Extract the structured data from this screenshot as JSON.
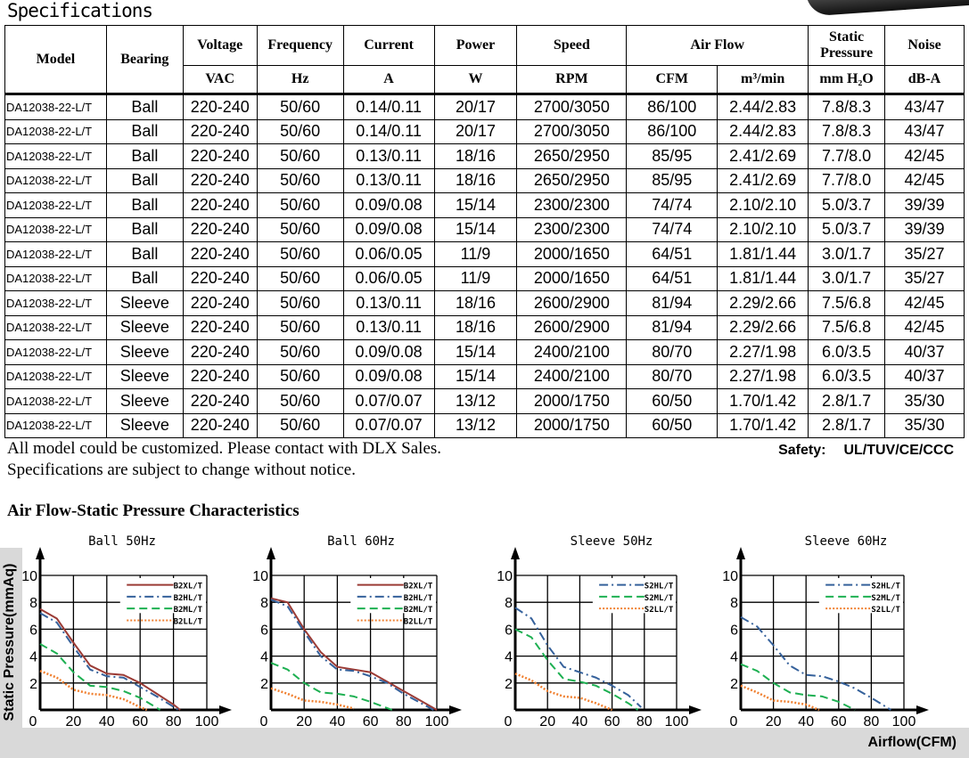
{
  "title": "Specifications",
  "table": {
    "headers": {
      "model": "Model",
      "bearing": "Bearing",
      "voltage": "Voltage",
      "frequency": "Frequency",
      "current": "Current",
      "power": "Power",
      "speed": "Speed",
      "airflow": "Air Flow",
      "static_pressure": "Static Pressure",
      "noise": "Noise"
    },
    "units": {
      "voltage": "VAC",
      "frequency": "Hz",
      "current": "A",
      "power": "W",
      "speed": "RPM",
      "cfm": "CFM",
      "m3": "m³/min",
      "pressure": "mm H₂O",
      "noise": "dB-A"
    },
    "rows": [
      [
        "DA12038-22-L/T",
        "Ball",
        "220-240",
        "50/60",
        "0.14/0.11",
        "20/17",
        "2700/3050",
        "86/100",
        "2.44/2.83",
        "7.8/8.3",
        "43/47"
      ],
      [
        "DA12038-22-L/T",
        "Ball",
        "220-240",
        "50/60",
        "0.14/0.11",
        "20/17",
        "2700/3050",
        "86/100",
        "2.44/2.83",
        "7.8/8.3",
        "43/47"
      ],
      [
        "DA12038-22-L/T",
        "Ball",
        "220-240",
        "50/60",
        "0.13/0.11",
        "18/16",
        "2650/2950",
        "85/95",
        "2.41/2.69",
        "7.7/8.0",
        "42/45"
      ],
      [
        "DA12038-22-L/T",
        "Ball",
        "220-240",
        "50/60",
        "0.13/0.11",
        "18/16",
        "2650/2950",
        "85/95",
        "2.41/2.69",
        "7.7/8.0",
        "42/45"
      ],
      [
        "DA12038-22-L/T",
        "Ball",
        "220-240",
        "50/60",
        "0.09/0.08",
        "15/14",
        "2300/2300",
        "74/74",
        "2.10/2.10",
        "5.0/3.7",
        "39/39"
      ],
      [
        "DA12038-22-L/T",
        "Ball",
        "220-240",
        "50/60",
        "0.09/0.08",
        "15/14",
        "2300/2300",
        "74/74",
        "2.10/2.10",
        "5.0/3.7",
        "39/39"
      ],
      [
        "DA12038-22-L/T",
        "Ball",
        "220-240",
        "50/60",
        "0.06/0.05",
        "11/9",
        "2000/1650",
        "64/51",
        "1.81/1.44",
        "3.0/1.7",
        "35/27"
      ],
      [
        "DA12038-22-L/T",
        "Ball",
        "220-240",
        "50/60",
        "0.06/0.05",
        "11/9",
        "2000/1650",
        "64/51",
        "1.81/1.44",
        "3.0/1.7",
        "35/27"
      ],
      [
        "DA12038-22-L/T",
        "Sleeve",
        "220-240",
        "50/60",
        "0.13/0.11",
        "18/16",
        "2600/2900",
        "81/94",
        "2.29/2.66",
        "7.5/6.8",
        "42/45"
      ],
      [
        "DA12038-22-L/T",
        "Sleeve",
        "220-240",
        "50/60",
        "0.13/0.11",
        "18/16",
        "2600/2900",
        "81/94",
        "2.29/2.66",
        "7.5/6.8",
        "42/45"
      ],
      [
        "DA12038-22-L/T",
        "Sleeve",
        "220-240",
        "50/60",
        "0.09/0.08",
        "15/14",
        "2400/2100",
        "80/70",
        "2.27/1.98",
        "6.0/3.5",
        "40/37"
      ],
      [
        "DA12038-22-L/T",
        "Sleeve",
        "220-240",
        "50/60",
        "0.09/0.08",
        "15/14",
        "2400/2100",
        "80/70",
        "2.27/1.98",
        "6.0/3.5",
        "40/37"
      ],
      [
        "DA12038-22-L/T",
        "Sleeve",
        "220-240",
        "50/60",
        "0.07/0.07",
        "13/12",
        "2000/1750",
        "60/50",
        "1.70/1.42",
        "2.8/1.7",
        "35/30"
      ],
      [
        "DA12038-22-L/T",
        "Sleeve",
        "220-240",
        "50/60",
        "0.07/0.07",
        "13/12",
        "2000/1750",
        "60/50",
        "1.70/1.42",
        "2.8/1.7",
        "35/30"
      ]
    ]
  },
  "notes": [
    "All model could be customized. Please contact with DLX Sales.",
    "Specifications are subject to change without notice."
  ],
  "safety": {
    "label": "Safety:",
    "value": "UL/TUV/CE/CCC"
  },
  "section_title": "Air Flow-Static Pressure Characteristics",
  "ylabel": "Static Pressure(mmAq)",
  "xlabel": "Airflow(CFM)",
  "chart_data": [
    {
      "type": "line",
      "title": "Ball 50Hz",
      "xlim": [
        0,
        100
      ],
      "ylim": [
        0,
        10
      ],
      "xticks": [
        0,
        20,
        40,
        60,
        80,
        100
      ],
      "yticks": [
        0,
        2,
        4,
        6,
        8,
        10
      ],
      "grid": true,
      "legend": "top-right",
      "series": [
        {
          "name": "B2XL/T",
          "color": "#9b3b35",
          "style": "solid",
          "x": [
            0,
            10,
            20,
            30,
            40,
            50,
            60,
            70,
            80,
            84
          ],
          "y": [
            7.5,
            6.8,
            5,
            3.3,
            2.7,
            2.6,
            2,
            1.2,
            0.4,
            0
          ]
        },
        {
          "name": "B2HL/T",
          "color": "#35619b",
          "style": "dashdot",
          "x": [
            0,
            10,
            20,
            30,
            40,
            50,
            60,
            70,
            83
          ],
          "y": [
            7.2,
            6.5,
            4.7,
            3,
            2.5,
            2.4,
            1.7,
            1,
            0
          ]
        },
        {
          "name": "B2ML/T",
          "color": "#1eb052",
          "style": "dashed",
          "x": [
            0,
            10,
            20,
            30,
            40,
            50,
            60,
            72
          ],
          "y": [
            4.9,
            4.2,
            2.8,
            1.8,
            1.7,
            1.4,
            0.9,
            0
          ]
        },
        {
          "name": "B2LL/T",
          "color": "#f08030",
          "style": "dotted",
          "x": [
            0,
            10,
            20,
            30,
            40,
            50,
            60,
            64
          ],
          "y": [
            2.9,
            2.4,
            1.5,
            1.2,
            1.1,
            0.8,
            0.2,
            0
          ]
        }
      ]
    },
    {
      "type": "line",
      "title": "Ball 60Hz",
      "xlim": [
        0,
        100
      ],
      "ylim": [
        0,
        10
      ],
      "xticks": [
        0,
        20,
        40,
        60,
        80,
        100
      ],
      "yticks": [
        0,
        2,
        4,
        6,
        8,
        10
      ],
      "grid": true,
      "legend": "top-right",
      "series": [
        {
          "name": "B2XL/T",
          "color": "#9b3b35",
          "style": "solid",
          "x": [
            0,
            10,
            20,
            30,
            40,
            50,
            60,
            70,
            80,
            90,
            100
          ],
          "y": [
            8.3,
            8,
            6,
            4.3,
            3.2,
            3,
            2.8,
            2.1,
            1.4,
            0.7,
            0
          ]
        },
        {
          "name": "B2HL/T",
          "color": "#35619b",
          "style": "dashdot",
          "x": [
            0,
            10,
            20,
            30,
            40,
            50,
            60,
            70,
            80,
            98
          ],
          "y": [
            8.2,
            7.7,
            5.8,
            4,
            3,
            2.9,
            2.5,
            2,
            1.2,
            0
          ]
        },
        {
          "name": "B2ML/T",
          "color": "#1eb052",
          "style": "dashed",
          "x": [
            0,
            10,
            20,
            30,
            40,
            50,
            60,
            73
          ],
          "y": [
            3.5,
            3,
            2,
            1.3,
            1.2,
            1,
            0.6,
            0
          ]
        },
        {
          "name": "B2LL/T",
          "color": "#f08030",
          "style": "dotted",
          "x": [
            0,
            10,
            20,
            30,
            40,
            50
          ],
          "y": [
            1.6,
            1.2,
            0.7,
            0.6,
            0.4,
            0.1
          ]
        }
      ]
    },
    {
      "type": "line",
      "title": "Sleeve 50Hz",
      "xlim": [
        0,
        100
      ],
      "ylim": [
        0,
        10
      ],
      "xticks": [
        0,
        20,
        40,
        60,
        80,
        100
      ],
      "yticks": [
        0,
        2,
        4,
        6,
        8,
        10
      ],
      "grid": true,
      "legend": "top-right",
      "series": [
        {
          "name": "S2HL/T",
          "color": "#35619b",
          "style": "dashdot",
          "x": [
            0,
            10,
            20,
            30,
            40,
            50,
            60,
            70,
            78
          ],
          "y": [
            7.6,
            6.8,
            4.8,
            3.2,
            2.8,
            2.4,
            1.8,
            1.1,
            0.2
          ]
        },
        {
          "name": "S2ML/T",
          "color": "#1eb052",
          "style": "dashed",
          "x": [
            0,
            10,
            20,
            30,
            40,
            50,
            60,
            70,
            76
          ],
          "y": [
            6,
            5.4,
            3.7,
            2.3,
            2.1,
            1.8,
            1.2,
            0.5,
            0
          ]
        },
        {
          "name": "S2LL/T",
          "color": "#f08030",
          "style": "dotted",
          "x": [
            0,
            10,
            20,
            30,
            40,
            50,
            60
          ],
          "y": [
            2.7,
            2.2,
            1.4,
            1,
            0.9,
            0.5,
            0
          ]
        }
      ]
    },
    {
      "type": "line",
      "title": "Sleeve 60Hz",
      "xlim": [
        0,
        100
      ],
      "ylim": [
        0,
        10
      ],
      "xticks": [
        0,
        20,
        40,
        60,
        80,
        100
      ],
      "yticks": [
        0,
        2,
        4,
        6,
        8,
        10
      ],
      "grid": true,
      "legend": "top-right",
      "series": [
        {
          "name": "S2HL/T",
          "color": "#35619b",
          "style": "dashdot",
          "x": [
            0,
            10,
            20,
            30,
            40,
            50,
            60,
            70,
            80,
            92
          ],
          "y": [
            6.9,
            6.2,
            4.8,
            3.3,
            2.6,
            2.5,
            2.1,
            1.6,
            0.9,
            0
          ]
        },
        {
          "name": "S2ML/T",
          "color": "#1eb052",
          "style": "dashed",
          "x": [
            0,
            10,
            20,
            30,
            40,
            50,
            60,
            70
          ],
          "y": [
            3.4,
            2.9,
            2,
            1.3,
            1.1,
            1,
            0.6,
            0
          ]
        },
        {
          "name": "S2LL/T",
          "color": "#f08030",
          "style": "dotted",
          "x": [
            0,
            10,
            20,
            30,
            40,
            48
          ],
          "y": [
            1.8,
            1.3,
            0.7,
            0.6,
            0.4,
            0
          ]
        }
      ]
    }
  ]
}
